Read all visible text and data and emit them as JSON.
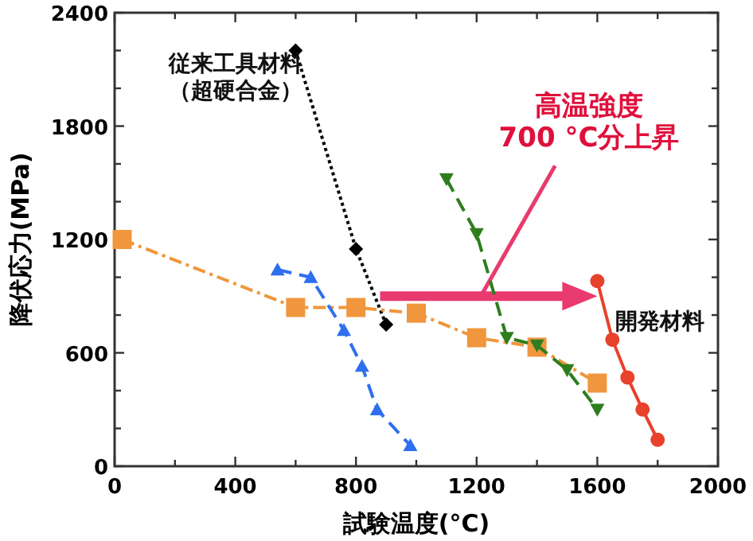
{
  "chart_data": {
    "type": "line",
    "xlabel": "試験温度(°C)",
    "ylabel": "降伏応力(MPa)",
    "xlim": [
      0,
      2000
    ],
    "ylim": [
      0,
      2400
    ],
    "xticks": [
      0,
      {
        "value": 200,
        "label": null
      },
      400,
      {
        "value": 600,
        "label": null
      },
      800,
      {
        "value": 1000,
        "label": null
      },
      1200,
      {
        "value": 1400,
        "label": null
      },
      1600,
      {
        "value": 1800,
        "label": null
      },
      2000
    ],
    "yticks": [
      0,
      {
        "value": 200,
        "label": null
      },
      {
        "value": 400,
        "label": null
      },
      600,
      {
        "value": 800,
        "label": null
      },
      {
        "value": 1000,
        "label": null
      },
      1200,
      {
        "value": 1400,
        "label": null
      },
      {
        "value": 1600,
        "label": null
      },
      1800,
      {
        "value": 2000,
        "label": null
      },
      {
        "value": 2200,
        "label": null
      },
      2400
    ],
    "series": [
      {
        "color": "#000000",
        "marker": "diamond",
        "line_style": "dotted",
        "x": [
          600,
          800,
          900
        ],
        "values": [
          2200,
          1150,
          750
        ]
      },
      {
        "color": "#f0963c",
        "marker": "square",
        "line_style": "dashdot",
        "x": [
          25,
          600,
          800,
          1000,
          1200,
          1400,
          1600
        ],
        "values": [
          1200,
          840,
          840,
          810,
          680,
          630,
          440
        ]
      },
      {
        "color": "#2f6fef",
        "marker": "triangle",
        "line_style": "dashed",
        "x": [
          540,
          650,
          760,
          820,
          870,
          980
        ],
        "values": [
          1040,
          1000,
          720,
          530,
          300,
          110
        ]
      },
      {
        "color": "#2e7d1e",
        "marker": "triangle_down",
        "line_style": "dashed",
        "x": [
          1100,
          1200,
          1300,
          1400,
          1500,
          1600
        ],
        "values": [
          1520,
          1230,
          680,
          640,
          510,
          300
        ]
      },
      {
        "color": "#e8412c",
        "marker": "circle",
        "line_style": "solid",
        "x": [
          1600,
          1650,
          1700,
          1750,
          1800
        ],
        "values": [
          980,
          670,
          470,
          300,
          140
        ]
      }
    ],
    "annotations": [
      "従来工具材料（超硬合金）",
      "高温強度700 °C分上昇",
      {
        "text": "開発材料",
        "x": 1660,
        "y": 770
      }
    ]
  }
}
